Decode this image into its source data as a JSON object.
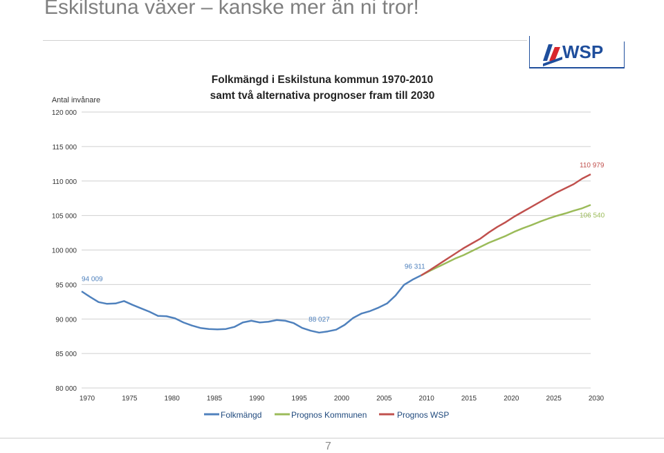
{
  "slide": {
    "title": "Eskilstuna växer – kanske mer än ni tror!",
    "page_number": "7",
    "logo_text": "WSP"
  },
  "colors": {
    "folkmangd": "#4f81bd",
    "kommunen": "#9bbb59",
    "wsp": "#c0504d",
    "title_gray": "#7f7f7f"
  },
  "chart_data": {
    "type": "line",
    "title": [
      "Folkmängd i Eskilstuna kommun 1970-2010",
      "samt två alternativa prognoser fram till 2030"
    ],
    "ylabel": "Antal invånare",
    "xlim": [
      1970,
      2030
    ],
    "ylim": [
      80000,
      120000
    ],
    "x_ticks": [
      1970,
      1975,
      1980,
      1985,
      1990,
      1995,
      2000,
      2005,
      2010,
      2015,
      2020,
      2025,
      2030
    ],
    "y_ticks": [
      80000,
      85000,
      90000,
      95000,
      100000,
      105000,
      110000,
      115000,
      120000
    ],
    "y_tick_labels": [
      "80 000",
      "85 000",
      "90 000",
      "95 000",
      "100 000",
      "105 000",
      "110 000",
      "115 000",
      "120 000"
    ],
    "grid": true,
    "legend_position": "bottom",
    "series": [
      {
        "name": "Folkmängd",
        "x": [
          1970,
          1971,
          1972,
          1973,
          1974,
          1975,
          1976,
          1977,
          1978,
          1979,
          1980,
          1981,
          1982,
          1983,
          1984,
          1985,
          1986,
          1987,
          1988,
          1989,
          1990,
          1991,
          1992,
          1993,
          1994,
          1995,
          1996,
          1997,
          1998,
          1999,
          2000,
          2001,
          2002,
          2003,
          2004,
          2005,
          2006,
          2007,
          2008,
          2009,
          2010
        ],
        "values": [
          94009,
          93200,
          92450,
          92200,
          92250,
          92600,
          92050,
          91550,
          91050,
          90450,
          90400,
          90100,
          89500,
          89050,
          88700,
          88550,
          88500,
          88550,
          88850,
          89500,
          89750,
          89500,
          89600,
          89850,
          89750,
          89400,
          88700,
          88300,
          88027,
          88200,
          88450,
          89150,
          90150,
          90800,
          91150,
          91650,
          92250,
          93400,
          94950,
          95700,
          96311
        ]
      },
      {
        "name": "Prognos Kommunen",
        "x": [
          2010,
          2011,
          2012,
          2013,
          2014,
          2015,
          2016,
          2017,
          2018,
          2019,
          2020,
          2021,
          2022,
          2023,
          2024,
          2025,
          2026,
          2027,
          2028,
          2029,
          2030
        ],
        "values": [
          96311,
          96950,
          97550,
          98150,
          98750,
          99250,
          99850,
          100450,
          101050,
          101550,
          102050,
          102650,
          103150,
          103600,
          104100,
          104550,
          104950,
          105300,
          105700,
          106050,
          106540
        ]
      },
      {
        "name": "Prognos WSP",
        "x": [
          2010,
          2011,
          2012,
          2013,
          2014,
          2015,
          2016,
          2017,
          2018,
          2019,
          2020,
          2021,
          2022,
          2023,
          2024,
          2025,
          2026,
          2027,
          2028,
          2029,
          2030
        ],
        "values": [
          96311,
          97050,
          97850,
          98650,
          99450,
          100250,
          100950,
          101650,
          102550,
          103350,
          104050,
          104850,
          105550,
          106250,
          106950,
          107650,
          108350,
          108950,
          109550,
          110350,
          110979
        ]
      }
    ],
    "annotations": [
      {
        "text": "94 009",
        "series": 0,
        "x": 1970
      },
      {
        "text": "88 027",
        "series": 0,
        "x": 1998
      },
      {
        "text": "96 311",
        "series": 0,
        "x": 2010
      },
      {
        "text": "110 979",
        "series": 2,
        "x": 2030
      },
      {
        "text": "106 540",
        "series": 1,
        "x": 2030
      }
    ]
  }
}
